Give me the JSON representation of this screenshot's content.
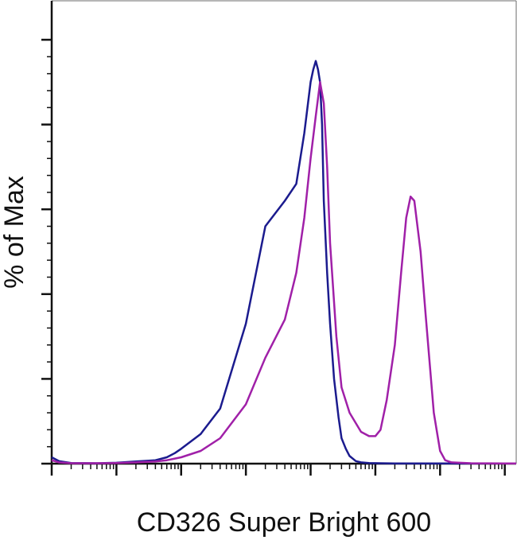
{
  "chart_data": {
    "type": "line",
    "title": "",
    "xlabel": "CD326 Super Bright 600",
    "ylabel": "% of Max",
    "x_scale": "log",
    "xlim": [
      1,
      15000000
    ],
    "ylim": [
      0,
      100
    ],
    "grid": false,
    "legend": "none",
    "series": [
      {
        "color": "#1b1b8e",
        "x": [
          1,
          1.3,
          2,
          5,
          10,
          20,
          40,
          60,
          80,
          100,
          200,
          400,
          1000,
          2000,
          4000,
          6000,
          8000,
          10000,
          11000,
          12000,
          13000,
          14000,
          15000,
          16000,
          18000,
          20000,
          23000,
          27000,
          30000,
          35000,
          40000,
          50000,
          60000,
          80000,
          120000,
          200000,
          500000,
          1000000,
          3000000,
          10000000,
          15000000
        ],
        "y": [
          1.5,
          0.6,
          0.15,
          0.1,
          0.2,
          0.5,
          0.8,
          1.5,
          2.5,
          3.5,
          7,
          13,
          33,
          56,
          62,
          66,
          78,
          90,
          93,
          95,
          93,
          90,
          80,
          62,
          45,
          33,
          20,
          11,
          6,
          3.5,
          1.8,
          0.6,
          0.3,
          0.15,
          0.1,
          0.05,
          0.05,
          0.05,
          0.05,
          0.05,
          0.05
        ]
      },
      {
        "color": "#a020a8",
        "x": [
          1,
          1.3,
          2,
          5,
          10,
          20,
          40,
          60,
          80,
          100,
          200,
          400,
          1000,
          2000,
          4000,
          6000,
          8000,
          10000,
          12000,
          14000,
          16000,
          18000,
          20000,
          25000,
          30000,
          40000,
          60000,
          80000,
          100000,
          120000,
          150000,
          200000,
          250000,
          300000,
          350000,
          400000,
          500000,
          600000,
          800000,
          1000000,
          1200000,
          1500000,
          3000000,
          10000000,
          15000000
        ],
        "y": [
          0.8,
          0.3,
          0.1,
          0.1,
          0.15,
          0.3,
          0.5,
          0.8,
          1.2,
          1.5,
          3,
          6,
          14,
          25,
          34,
          45,
          58,
          72,
          82,
          90,
          85,
          70,
          52,
          30,
          18,
          12,
          7.5,
          6.5,
          6.5,
          8,
          15,
          28,
          45,
          58,
          63,
          62,
          50,
          35,
          12,
          3,
          0.8,
          0.3,
          0.1,
          0.05,
          0.05
        ]
      }
    ]
  }
}
